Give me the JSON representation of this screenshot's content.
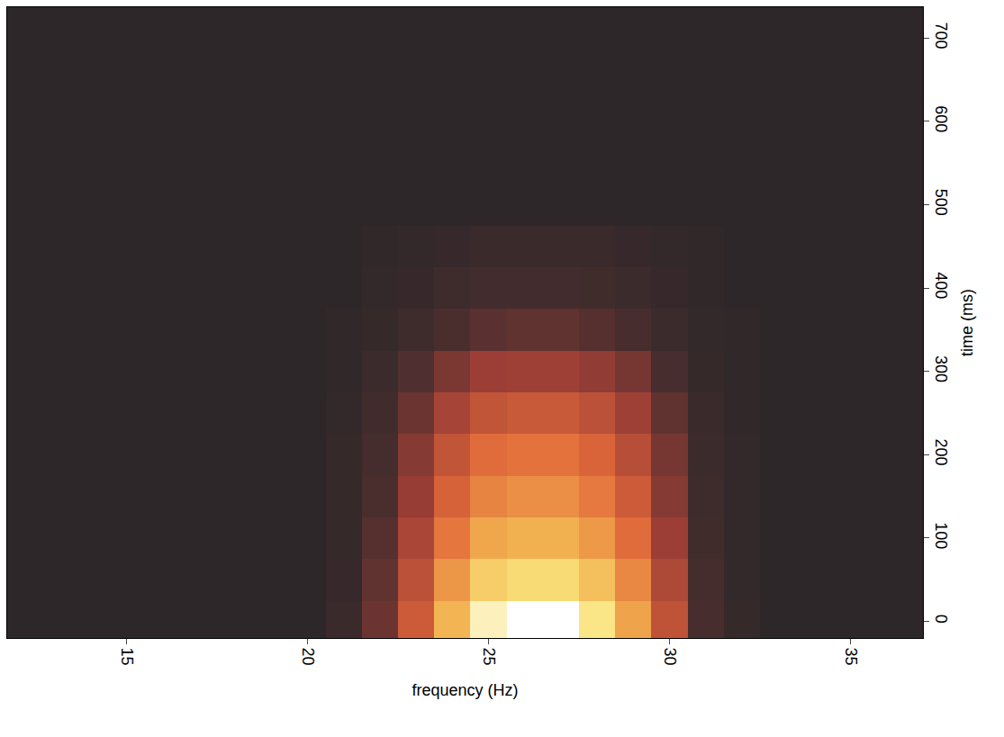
{
  "chart_data": {
    "type": "heatmap",
    "x_label": "frequency (Hz)",
    "y_label": "time (ms)",
    "x": [
      12,
      13,
      14,
      15,
      16,
      17,
      18,
      19,
      20,
      21,
      22,
      23,
      24,
      25,
      26,
      27,
      28,
      29,
      30,
      31,
      32,
      33,
      34,
      35,
      36,
      37
    ],
    "y": [
      0,
      50,
      100,
      150,
      200,
      250,
      300,
      350,
      400,
      450,
      500,
      550,
      600,
      650,
      700
    ],
    "z": [
      [
        0.08,
        0.08,
        0.08,
        0.08,
        0.08,
        0.08,
        0.08,
        0.08,
        0.08,
        0.13,
        0.26,
        0.49,
        0.77,
        0.95,
        1.0,
        1.0,
        0.91,
        0.72,
        0.45,
        0.19,
        0.11,
        0.08,
        0.08,
        0.08,
        0.08,
        0.08
      ],
      [
        0.08,
        0.08,
        0.08,
        0.08,
        0.08,
        0.08,
        0.08,
        0.08,
        0.08,
        0.12,
        0.24,
        0.44,
        0.68,
        0.84,
        0.88,
        0.88,
        0.8,
        0.64,
        0.4,
        0.18,
        0.1,
        0.08,
        0.08,
        0.08,
        0.08,
        0.08
      ],
      [
        0.08,
        0.08,
        0.08,
        0.08,
        0.08,
        0.08,
        0.08,
        0.08,
        0.08,
        0.11,
        0.22,
        0.39,
        0.59,
        0.73,
        0.76,
        0.76,
        0.69,
        0.56,
        0.35,
        0.16,
        0.1,
        0.08,
        0.08,
        0.08,
        0.08,
        0.08
      ],
      [
        0.08,
        0.08,
        0.08,
        0.08,
        0.08,
        0.08,
        0.08,
        0.08,
        0.08,
        0.11,
        0.2,
        0.34,
        0.52,
        0.63,
        0.66,
        0.66,
        0.6,
        0.49,
        0.31,
        0.15,
        0.1,
        0.08,
        0.08,
        0.08,
        0.08,
        0.08
      ],
      [
        0.08,
        0.08,
        0.08,
        0.08,
        0.08,
        0.08,
        0.08,
        0.08,
        0.08,
        0.11,
        0.18,
        0.31,
        0.46,
        0.56,
        0.58,
        0.58,
        0.53,
        0.43,
        0.28,
        0.14,
        0.1,
        0.08,
        0.08,
        0.08,
        0.08,
        0.08
      ],
      [
        0.08,
        0.08,
        0.08,
        0.08,
        0.08,
        0.08,
        0.08,
        0.08,
        0.08,
        0.1,
        0.16,
        0.26,
        0.38,
        0.46,
        0.48,
        0.48,
        0.44,
        0.36,
        0.24,
        0.13,
        0.09,
        0.08,
        0.08,
        0.08,
        0.08,
        0.08
      ],
      [
        0.08,
        0.08,
        0.08,
        0.08,
        0.08,
        0.08,
        0.08,
        0.08,
        0.08,
        0.09,
        0.14,
        0.21,
        0.29,
        0.35,
        0.36,
        0.36,
        0.33,
        0.28,
        0.19,
        0.11,
        0.09,
        0.08,
        0.08,
        0.08,
        0.08,
        0.08
      ],
      [
        0.08,
        0.08,
        0.08,
        0.08,
        0.08,
        0.08,
        0.08,
        0.08,
        0.08,
        0.09,
        0.11,
        0.15,
        0.2,
        0.23,
        0.24,
        0.24,
        0.22,
        0.19,
        0.14,
        0.1,
        0.09,
        0.08,
        0.08,
        0.08,
        0.08,
        0.08
      ],
      [
        0.08,
        0.08,
        0.08,
        0.08,
        0.08,
        0.08,
        0.08,
        0.08,
        0.08,
        0.08,
        0.1,
        0.12,
        0.15,
        0.17,
        0.17,
        0.17,
        0.16,
        0.14,
        0.12,
        0.09,
        0.08,
        0.08,
        0.08,
        0.08,
        0.08,
        0.08
      ],
      [
        0.08,
        0.08,
        0.08,
        0.08,
        0.08,
        0.08,
        0.08,
        0.08,
        0.08,
        0.08,
        0.09,
        0.1,
        0.12,
        0.13,
        0.13,
        0.13,
        0.13,
        0.12,
        0.1,
        0.09,
        0.08,
        0.08,
        0.08,
        0.08,
        0.08,
        0.08
      ],
      [
        0.08,
        0.08,
        0.08,
        0.08,
        0.08,
        0.08,
        0.08,
        0.08,
        0.08,
        0.08,
        0.08,
        0.08,
        0.08,
        0.08,
        0.08,
        0.08,
        0.08,
        0.08,
        0.08,
        0.08,
        0.08,
        0.08,
        0.08,
        0.08,
        0.08,
        0.08
      ],
      [
        0.08,
        0.08,
        0.08,
        0.08,
        0.08,
        0.08,
        0.08,
        0.08,
        0.08,
        0.08,
        0.08,
        0.08,
        0.08,
        0.08,
        0.08,
        0.08,
        0.08,
        0.08,
        0.08,
        0.08,
        0.08,
        0.08,
        0.08,
        0.08,
        0.08,
        0.08
      ],
      [
        0.08,
        0.08,
        0.08,
        0.08,
        0.08,
        0.08,
        0.08,
        0.08,
        0.08,
        0.08,
        0.08,
        0.08,
        0.08,
        0.08,
        0.08,
        0.08,
        0.08,
        0.08,
        0.08,
        0.08,
        0.08,
        0.08,
        0.08,
        0.08,
        0.08,
        0.08
      ],
      [
        0.08,
        0.08,
        0.08,
        0.08,
        0.08,
        0.08,
        0.08,
        0.08,
        0.08,
        0.08,
        0.08,
        0.08,
        0.08,
        0.08,
        0.08,
        0.08,
        0.08,
        0.08,
        0.08,
        0.08,
        0.08,
        0.08,
        0.08,
        0.08,
        0.08,
        0.08
      ],
      [
        0.08,
        0.08,
        0.08,
        0.08,
        0.08,
        0.08,
        0.08,
        0.08,
        0.08,
        0.08,
        0.08,
        0.08,
        0.08,
        0.08,
        0.08,
        0.08,
        0.08,
        0.08,
        0.08,
        0.08,
        0.08,
        0.08,
        0.08,
        0.08,
        0.08,
        0.08
      ]
    ],
    "zlim": [
      0,
      1
    ],
    "xlim": [
      11.7,
      37
    ],
    "ylim": [
      -20,
      737
    ],
    "xticks": [
      15,
      20,
      25,
      30,
      35
    ],
    "yticks": [
      0,
      100,
      200,
      300,
      400,
      500,
      600,
      700
    ]
  }
}
